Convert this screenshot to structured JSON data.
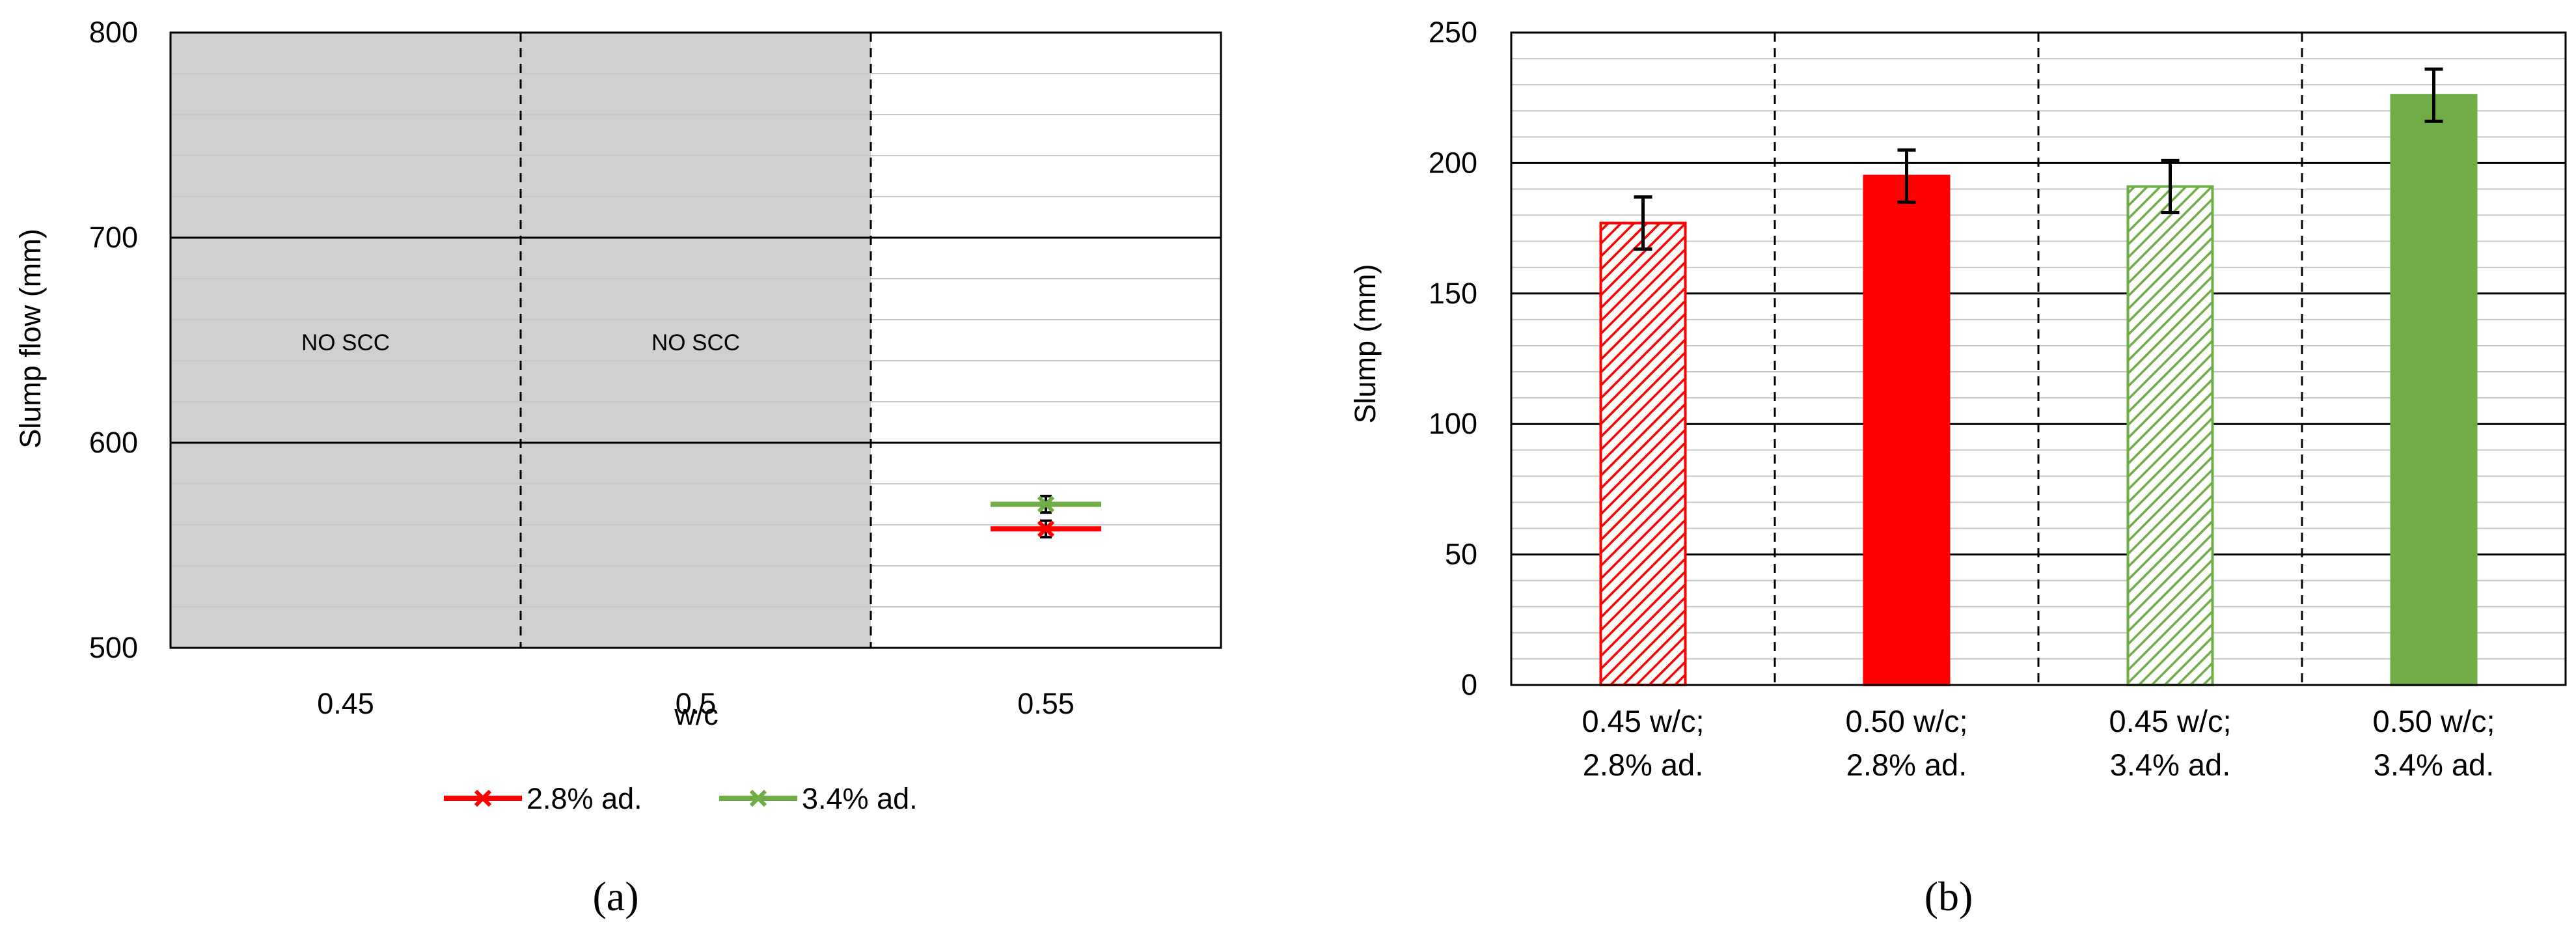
{
  "chart_data": [
    {
      "panel": "a",
      "panel_label": "(a)",
      "type": "line",
      "xlabel": "w/c",
      "ylabel": "Slump flow (mm)",
      "categories": [
        "0.45",
        "0.5",
        "0.55"
      ],
      "ylim": [
        500,
        800
      ],
      "y_ticks": [
        500,
        600,
        700,
        800
      ],
      "grid": true,
      "shaded_categories": [
        "0.45",
        "0.5"
      ],
      "shaded_color": "#d0d0d0",
      "annotations": [
        {
          "category": "0.45",
          "text": "NO SCC"
        },
        {
          "category": "0.5",
          "text": "NO SCC"
        }
      ],
      "series": [
        {
          "name": "2.8% ad.",
          "color": "#ff0000",
          "marker": "x",
          "points": [
            {
              "x": "0.55",
              "y": 558,
              "error": 4
            }
          ]
        },
        {
          "name": "3.4% ad.",
          "color": "#70ad47",
          "marker": "x",
          "points": [
            {
              "x": "0.55",
              "y": 570,
              "error": 4
            }
          ]
        }
      ],
      "legend_position": "bottom"
    },
    {
      "panel": "b",
      "panel_label": "(b)",
      "type": "bar",
      "xlabel": "",
      "ylabel": "Slump (mm)",
      "categories": [
        [
          "0.45 w/c;",
          "2.8% ad."
        ],
        [
          "0.50 w/c;",
          "2.8% ad."
        ],
        [
          "0.45 w/c;",
          "3.4% ad."
        ],
        [
          "0.50 w/c;",
          "3.4% ad."
        ]
      ],
      "values": [
        177,
        195,
        191,
        226
      ],
      "errors": [
        10,
        10,
        10,
        10
      ],
      "colors": [
        "#ff0000",
        "#ff0000",
        "#70ad47",
        "#70ad47"
      ],
      "fill_styles": [
        "hatched",
        "solid",
        "hatched",
        "solid"
      ],
      "ylim": [
        0,
        250
      ],
      "y_ticks": [
        0,
        50,
        100,
        150,
        200,
        250
      ],
      "grid": true
    }
  ]
}
